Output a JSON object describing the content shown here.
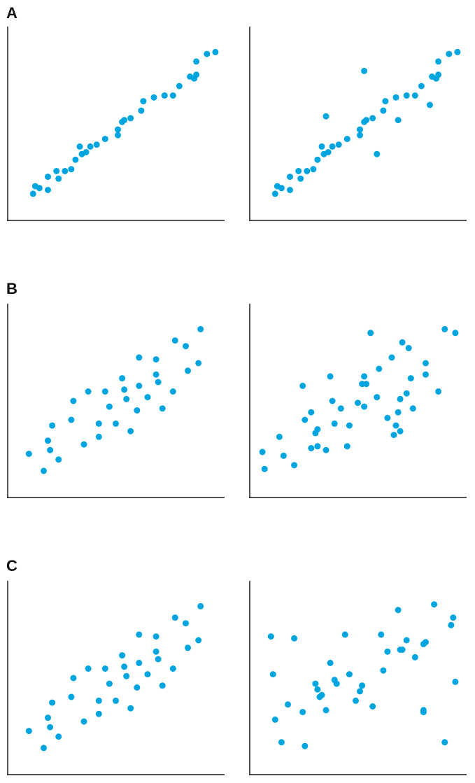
{
  "panels": [
    {
      "label": "A"
    },
    {
      "label": "B"
    },
    {
      "label": "C"
    }
  ],
  "style": {
    "point_color": "#00a5e0",
    "axis_color": "#1a1a1a"
  },
  "chart_data": [
    {
      "type": "scatter",
      "panel": "A",
      "position": "left",
      "xlim": [
        0,
        100
      ],
      "ylim": [
        0,
        100
      ],
      "x": [
        11,
        12,
        14,
        18,
        18,
        22,
        23,
        26,
        29,
        31,
        34,
        33,
        36,
        38,
        41,
        45,
        51,
        51,
        53,
        54,
        57,
        62,
        63,
        68,
        73,
        77,
        80,
        85,
        87,
        88,
        88,
        93,
        97
      ],
      "y": [
        13,
        17,
        16,
        15,
        22,
        25,
        21,
        25,
        26,
        31,
        34,
        38,
        35,
        38,
        39,
        42,
        44,
        47,
        51,
        52,
        53,
        57,
        62,
        64,
        65,
        65,
        70,
        75,
        74,
        76,
        83,
        87,
        88
      ]
    },
    {
      "type": "scatter",
      "panel": "A",
      "position": "right",
      "xlim": [
        0,
        100
      ],
      "ylim": [
        0,
        100
      ],
      "x": [
        11,
        12,
        14,
        18,
        18,
        22,
        23,
        26,
        29,
        31,
        34,
        33,
        36,
        38,
        41,
        45,
        51,
        51,
        53,
        54,
        57,
        62,
        63,
        68,
        73,
        77,
        80,
        85,
        87,
        88,
        88,
        93,
        97,
        35,
        53,
        59,
        69,
        84
      ],
      "y": [
        13,
        17,
        16,
        15,
        22,
        25,
        21,
        25,
        26,
        31,
        34,
        38,
        35,
        38,
        39,
        42,
        44,
        47,
        51,
        52,
        53,
        57,
        62,
        64,
        65,
        65,
        70,
        75,
        74,
        76,
        83,
        87,
        88,
        54,
        78,
        34,
        52,
        60
      ]
    },
    {
      "type": "scatter",
      "panel": "B",
      "position": "left",
      "xlim": [
        0,
        100
      ],
      "ylim": [
        0,
        100
      ],
      "x": [
        9,
        16,
        18,
        19,
        20,
        23,
        29,
        30,
        35,
        37,
        42,
        42,
        45,
        47,
        50,
        53,
        54,
        55,
        57,
        60,
        61,
        61,
        65,
        69,
        69,
        70,
        72,
        77,
        78,
        83,
        84,
        89,
        90
      ],
      "y": [
        22,
        13,
        29,
        24,
        37,
        19,
        40,
        50,
        27,
        55,
        31,
        38,
        55,
        47,
        38,
        62,
        56,
        51,
        34,
        45,
        58,
        73,
        52,
        64,
        72,
        60,
        46,
        55,
        82,
        79,
        66,
        70,
        88
      ]
    },
    {
      "type": "scatter",
      "panel": "B",
      "position": "right",
      "xlim": [
        0,
        100
      ],
      "ylim": [
        0,
        100
      ],
      "x": [
        5,
        6,
        13,
        15,
        20,
        24,
        25,
        28,
        28,
        30,
        31,
        31,
        35,
        37,
        38,
        39,
        42,
        45,
        46,
        50,
        52,
        53,
        53,
        54,
        56,
        59,
        60,
        64,
        66,
        67,
        68,
        69,
        70,
        70,
        71,
        73,
        74,
        75,
        76,
        82,
        82,
        88,
        91,
        96
      ],
      "y": [
        23,
        14,
        31,
        21,
        16,
        58,
        40,
        44,
        25,
        33,
        26,
        35,
        24,
        63,
        50,
        38,
        46,
        26,
        37,
        49,
        59,
        63,
        47,
        59,
        86,
        52,
        67,
        41,
        73,
        32,
        37,
        44,
        34,
        51,
        81,
        54,
        78,
        62,
        46,
        64,
        70,
        55,
        88,
        86
      ]
    },
    {
      "type": "scatter",
      "panel": "C",
      "position": "left",
      "xlim": [
        0,
        100
      ],
      "ylim": [
        0,
        100
      ],
      "x": [
        9,
        16,
        18,
        19,
        20,
        23,
        29,
        30,
        35,
        37,
        42,
        42,
        45,
        47,
        50,
        53,
        54,
        55,
        57,
        60,
        61,
        61,
        65,
        69,
        69,
        70,
        72,
        77,
        78,
        83,
        84,
        89,
        90
      ],
      "y": [
        22,
        13,
        29,
        24,
        37,
        19,
        40,
        50,
        27,
        55,
        31,
        38,
        55,
        47,
        38,
        62,
        56,
        51,
        34,
        45,
        58,
        73,
        52,
        64,
        72,
        60,
        46,
        55,
        82,
        79,
        66,
        70,
        88
      ]
    },
    {
      "type": "scatter",
      "panel": "C",
      "position": "right",
      "xlim": [
        0,
        100
      ],
      "ylim": [
        0,
        100
      ],
      "x": [
        9,
        10,
        11,
        14,
        17,
        20,
        24,
        25,
        30,
        31,
        32,
        33,
        35,
        37,
        39,
        40,
        44,
        46,
        49,
        51,
        52,
        57,
        61,
        62,
        64,
        69,
        70,
        71,
        73,
        77,
        81,
        81,
        81,
        82,
        86,
        91,
        94,
        95,
        96
      ],
      "y": [
        72,
        52,
        28,
        16,
        36,
        71,
        32,
        14,
        47,
        44,
        40,
        41,
        33,
        58,
        49,
        47,
        73,
        52,
        38,
        43,
        46,
        35,
        73,
        54,
        64,
        86,
        65,
        65,
        70,
        61,
        32,
        33,
        68,
        69,
        89,
        16,
        78,
        82,
        48
      ]
    }
  ]
}
